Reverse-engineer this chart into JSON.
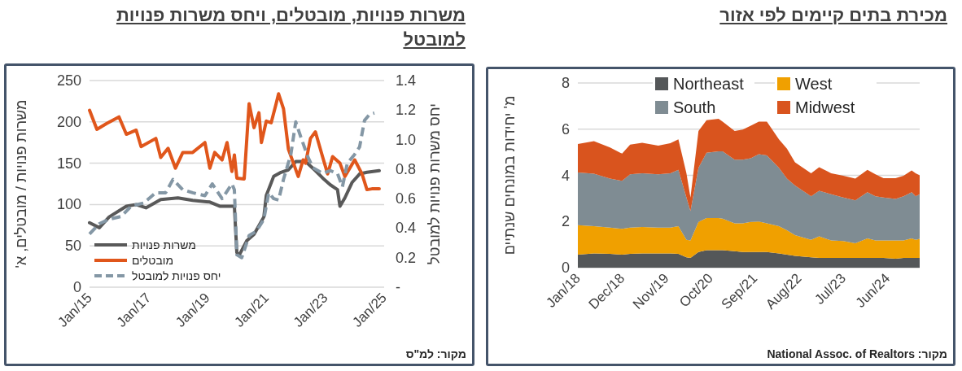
{
  "chart_data": [
    {
      "type": "area",
      "stacked": true,
      "title": "מכירת בתים קיימים לפי אזור",
      "ylabel": "מ' יחידות במונחים שנתיים",
      "x": [
        "2018-01",
        "2018-05",
        "2018-09",
        "2018-12",
        "2019-02",
        "2019-05",
        "2019-09",
        "2019-12",
        "2020-02",
        "2020-04",
        "2020-05",
        "2020-07",
        "2020-09",
        "2020-12",
        "2021-01",
        "2021-04",
        "2021-06",
        "2021-08",
        "2021-10",
        "2021-12",
        "2022-03",
        "2022-05",
        "2022-07",
        "2022-11",
        "2023-01",
        "2023-04",
        "2023-07",
        "2023-10",
        "2024-01",
        "2024-03",
        "2024-05",
        "2024-08",
        "2024-10",
        "2024-12",
        "2025-01",
        "2025-02"
      ],
      "series": [
        {
          "name": "Northeast",
          "color": "#545759",
          "values": [
            0.56,
            0.62,
            0.6,
            0.56,
            0.6,
            0.62,
            0.62,
            0.62,
            0.6,
            0.45,
            0.42,
            0.68,
            0.76,
            0.76,
            0.76,
            0.71,
            0.68,
            0.68,
            0.68,
            0.68,
            0.62,
            0.56,
            0.51,
            0.45,
            0.42,
            0.42,
            0.42,
            0.42,
            0.42,
            0.42,
            0.42,
            0.39,
            0.42,
            0.42,
            0.42,
            0.42
          ]
        },
        {
          "name": "West",
          "color": "#f0a000",
          "values": [
            1.28,
            1.18,
            1.14,
            1.12,
            1.14,
            1.14,
            1.12,
            1.12,
            1.2,
            0.76,
            0.76,
            1.3,
            1.39,
            1.39,
            1.36,
            1.21,
            1.24,
            1.3,
            1.32,
            1.24,
            1.18,
            1.06,
            0.9,
            0.76,
            0.94,
            0.76,
            0.73,
            0.64,
            0.85,
            0.76,
            0.76,
            0.79,
            0.76,
            0.85,
            0.79,
            0.83
          ]
        },
        {
          "name": "South",
          "color": "#7f8c93",
          "values": [
            2.28,
            2.27,
            2.12,
            2.08,
            2.3,
            2.33,
            2.3,
            2.35,
            2.44,
            1.83,
            1.27,
            2.35,
            2.83,
            2.89,
            2.92,
            2.76,
            2.76,
            2.76,
            2.92,
            2.94,
            2.53,
            2.24,
            2.15,
            1.88,
            1.97,
            2.0,
            1.89,
            1.86,
            2.0,
            1.91,
            1.86,
            1.8,
            1.91,
            2.0,
            1.88,
            1.93
          ]
        },
        {
          "name": "Midwest",
          "color": "#d9541e",
          "values": [
            1.24,
            1.41,
            1.35,
            1.18,
            1.29,
            1.32,
            1.25,
            1.3,
            1.32,
            1.05,
            0.59,
            1.59,
            1.41,
            1.41,
            1.29,
            1.24,
            1.3,
            1.41,
            1.41,
            1.47,
            1.23,
            1.29,
            1.0,
            1.0,
            1.02,
            0.91,
            0.94,
            0.94,
            0.97,
            0.95,
            0.84,
            0.9,
            0.89,
            0.94,
            1.0,
            0.82
          ]
        }
      ],
      "xlim": [
        "2018-01",
        "2025-02"
      ],
      "xticks": [
        {
          "value": "2018-01",
          "label": "Jan/18"
        },
        {
          "value": "2018-12",
          "label": "Dec/18"
        },
        {
          "value": "2019-11",
          "label": "Nov/19"
        },
        {
          "value": "2020-10",
          "label": "Oct/20"
        },
        {
          "value": "2021-09",
          "label": "Sep/21"
        },
        {
          "value": "2022-08",
          "label": "Aug/22"
        },
        {
          "value": "2023-07",
          "label": "Jul/23"
        },
        {
          "value": "2024-06",
          "label": "Jun/24"
        }
      ],
      "ylim": [
        0,
        8
      ],
      "yticks": [
        0,
        2,
        4,
        6,
        8
      ],
      "grid": "y",
      "legend": "top",
      "annotations": [
        "מקור: National Assoc. of Realtors"
      ]
    },
    {
      "type": "line",
      "title": "משרות פנויות, מובטלים, ויחס משרות פנויות למובטל",
      "ylabel": "משרות פנויות / מובטלים, א'",
      "y2label": "יחס משרות פנויות למובטל",
      "series": [
        {
          "name": "משרות פנויות",
          "color": "#595959",
          "x": [
            "2015-01",
            "2015-05",
            "2015-09",
            "2016-04",
            "2016-08",
            "2016-12",
            "2017-06",
            "2018-01",
            "2018-07",
            "2019-02",
            "2019-06",
            "2019-12",
            "2020-01",
            "2020-02",
            "2020-05",
            "2020-08",
            "2020-12",
            "2021-01",
            "2021-04",
            "2021-07",
            "2021-10",
            "2022-01",
            "2022-05",
            "2022-09",
            "2022-12",
            "2023-03",
            "2023-06",
            "2023-07",
            "2023-09",
            "2023-12",
            "2024-03",
            "2024-06",
            "2024-11"
          ],
          "values": [
            78,
            72,
            85,
            98,
            100,
            96,
            106,
            108,
            105,
            103,
            98,
            98,
            42,
            39,
            56,
            64,
            85,
            111,
            134,
            139,
            142,
            152,
            152,
            141,
            132,
            124,
            118,
            98,
            108,
            127,
            137,
            139,
            141
          ]
        },
        {
          "name": "מובטלים",
          "color": "#e0561b",
          "x": [
            "2015-01",
            "2015-04",
            "2015-08",
            "2016-01",
            "2016-04",
            "2016-08",
            "2016-10",
            "2017-04",
            "2017-06",
            "2017-09",
            "2017-12",
            "2018-03",
            "2018-07",
            "2018-12",
            "2019-02",
            "2019-04",
            "2019-07",
            "2019-09",
            "2019-11",
            "2019-12",
            "2020-01",
            "2020-04",
            "2020-06",
            "2020-08",
            "2020-10",
            "2020-11",
            "2021-01",
            "2021-03",
            "2021-05",
            "2021-06",
            "2021-08",
            "2021-10",
            "2022-02",
            "2022-04",
            "2022-05",
            "2022-07",
            "2022-09",
            "2022-12",
            "2023-02",
            "2023-04",
            "2023-07",
            "2023-09",
            "2023-11",
            "2024-01",
            "2024-04",
            "2024-06",
            "2024-08",
            "2024-11"
          ],
          "values": [
            214,
            191,
            198,
            206,
            185,
            190,
            170,
            180,
            157,
            168,
            144,
            163,
            163,
            175,
            144,
            163,
            154,
            175,
            140,
            160,
            132,
            131,
            222,
            193,
            211,
            175,
            201,
            199,
            222,
            234,
            216,
            167,
            134,
            154,
            150,
            180,
            188,
            157,
            137,
            158,
            150,
            134,
            144,
            154,
            137,
            118,
            119,
            119
          ]
        },
        {
          "name": "יחס פנויות למובטל",
          "color": "#8497a5",
          "axis": "y2",
          "line_style": "dashed",
          "x": [
            "2015-01",
            "2015-05",
            "2015-09",
            "2016-02",
            "2016-06",
            "2016-11",
            "2017-04",
            "2017-08",
            "2017-11",
            "2018-03",
            "2018-07",
            "2018-12",
            "2019-03",
            "2019-07",
            "2019-11",
            "2019-12",
            "2020-01",
            "2020-03",
            "2020-06",
            "2020-09",
            "2020-12",
            "2021-02",
            "2021-04",
            "2021-06",
            "2021-08",
            "2021-11",
            "2022-01",
            "2022-03",
            "2022-06",
            "2022-08",
            "2022-12",
            "2023-03",
            "2023-06",
            "2023-08",
            "2023-10",
            "2024-01",
            "2024-03",
            "2024-05",
            "2024-07",
            "2024-09"
          ],
          "values": [
            0.36,
            0.43,
            0.46,
            0.48,
            0.55,
            0.57,
            0.64,
            0.64,
            0.73,
            0.66,
            0.64,
            0.62,
            0.7,
            0.6,
            0.7,
            0.66,
            0.22,
            0.2,
            0.35,
            0.38,
            0.46,
            0.64,
            0.6,
            0.59,
            0.73,
            0.9,
            1.12,
            1.02,
            0.88,
            0.81,
            0.77,
            0.79,
            0.77,
            0.68,
            0.84,
            0.9,
            0.95,
            1.13,
            1.17,
            1.18
          ]
        }
      ],
      "xlim": [
        "2015-01",
        "2025-01"
      ],
      "xticks": [
        {
          "value": "2015-01",
          "label": "Jan/15"
        },
        {
          "value": "2017-01",
          "label": "Jan/17"
        },
        {
          "value": "2019-01",
          "label": "Jan/19"
        },
        {
          "value": "2021-01",
          "label": "Jan/21"
        },
        {
          "value": "2023-01",
          "label": "Jan/23"
        },
        {
          "value": "2025-01",
          "label": "Jan/25"
        }
      ],
      "ylim": [
        0,
        250
      ],
      "yticks": [
        0,
        50,
        100,
        150,
        200,
        250
      ],
      "y2lim": [
        0,
        1.4
      ],
      "y2ticks": [
        {
          "value": 0,
          "label": "-"
        },
        0.2,
        0.4,
        0.6,
        0.8,
        {
          "value": 1,
          "label": "1.0"
        },
        1.2,
        1.4
      ],
      "grid": "y",
      "legend": "bottom left",
      "annotations": [
        "מקור: למ\"ס"
      ]
    }
  ]
}
